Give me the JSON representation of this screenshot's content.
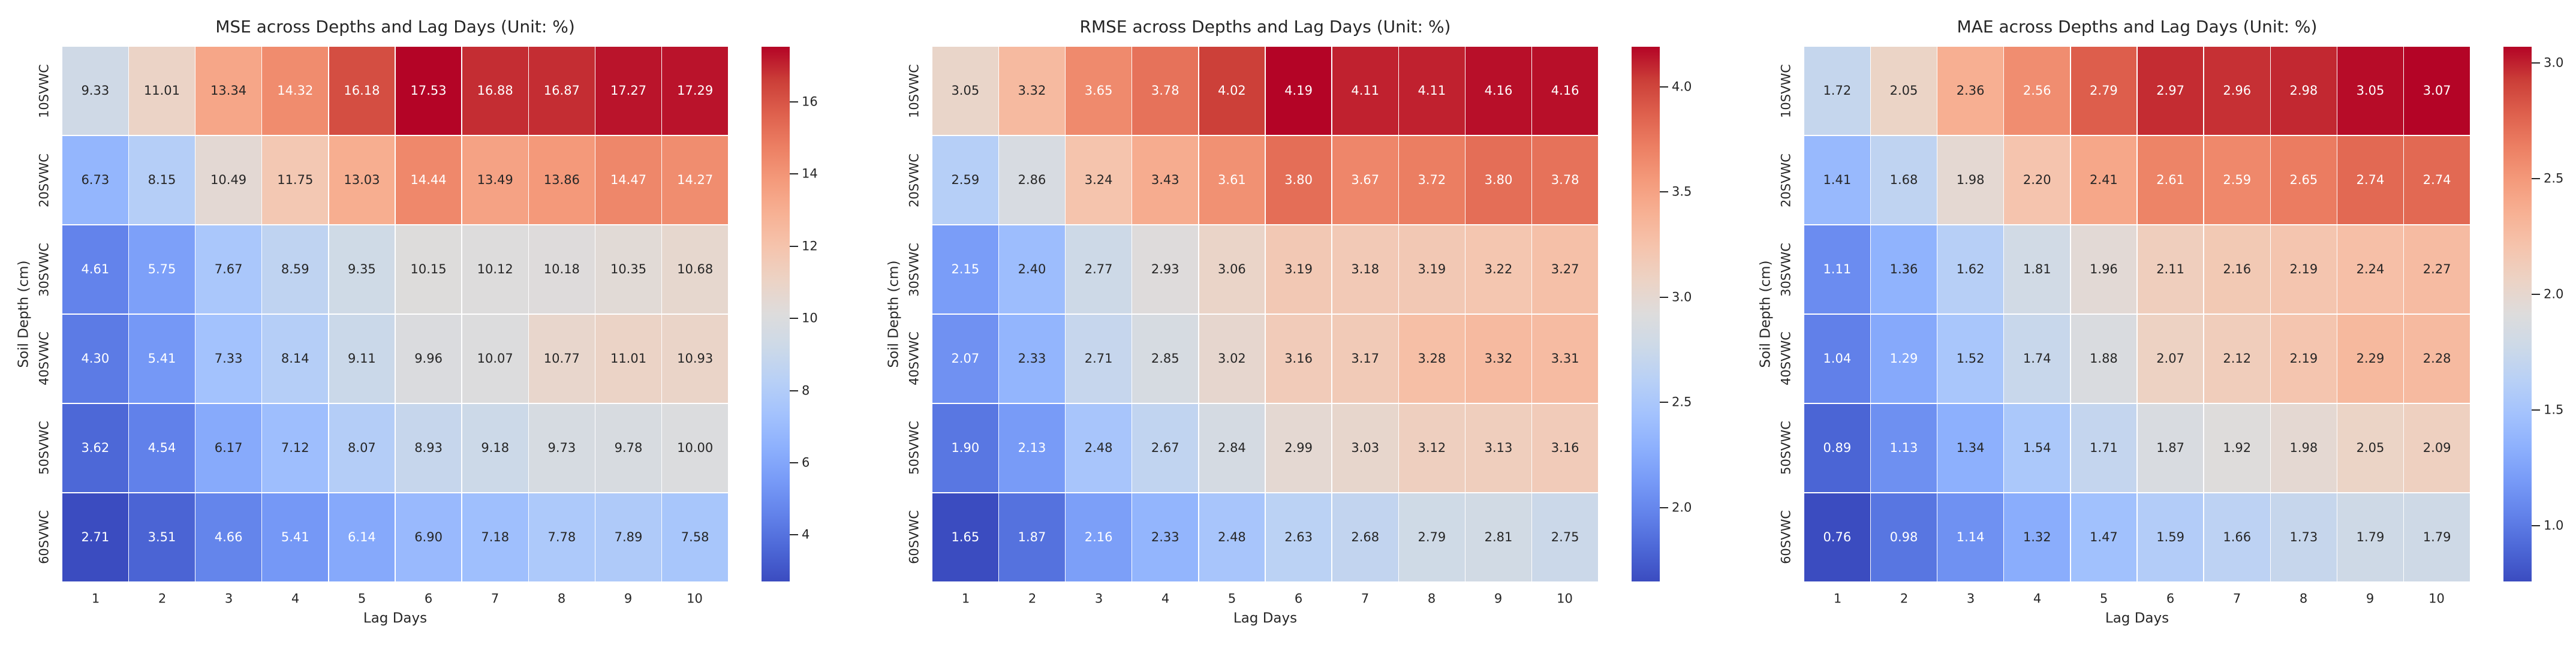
{
  "figure": {
    "background": "#ffffff",
    "text_color": "#262626",
    "colormap": "coolwarm",
    "colormap_stops": [
      [
        0.0,
        59,
        76,
        192
      ],
      [
        0.0625,
        77,
        104,
        215
      ],
      [
        0.125,
        98,
        130,
        234
      ],
      [
        0.1875,
        119,
        154,
        247
      ],
      [
        0.25,
        141,
        176,
        253
      ],
      [
        0.3125,
        163,
        194,
        253
      ],
      [
        0.375,
        184,
        208,
        246
      ],
      [
        0.4375,
        204,
        217,
        232
      ],
      [
        0.5,
        221,
        220,
        220
      ],
      [
        0.5625,
        236,
        211,
        197
      ],
      [
        0.625,
        245,
        196,
        173
      ],
      [
        0.6875,
        247,
        177,
        148
      ],
      [
        0.75,
        244,
        154,
        123
      ],
      [
        0.8125,
        236,
        127,
        99
      ],
      [
        0.875,
        222,
        96,
        77
      ],
      [
        0.9375,
        203,
        62,
        56
      ],
      [
        1.0,
        180,
        4,
        38
      ]
    ],
    "annotation_dark_text": "#262626",
    "annotation_light_text": "#ffffff"
  },
  "chart_data": [
    {
      "type": "heatmap",
      "title": "MSE across Depths and Lag Days (Unit: %)",
      "xlabel": "Lag Days",
      "ylabel": "Soil Depth (cm)",
      "x_ticks": [
        "1",
        "2",
        "3",
        "4",
        "5",
        "6",
        "7",
        "8",
        "9",
        "10"
      ],
      "y_ticks": [
        "10SVWC",
        "20SVWC",
        "30SVWC",
        "40SVWC",
        "50SVWC",
        "60SVWC"
      ],
      "values": [
        [
          9.33,
          11.01,
          13.34,
          14.32,
          16.18,
          17.53,
          16.88,
          16.87,
          17.27,
          17.29
        ],
        [
          6.73,
          8.15,
          10.49,
          11.75,
          13.03,
          14.44,
          13.49,
          13.86,
          14.47,
          14.27
        ],
        [
          4.61,
          5.75,
          7.67,
          8.59,
          9.35,
          10.15,
          10.12,
          10.18,
          10.35,
          10.68
        ],
        [
          4.3,
          5.41,
          7.33,
          8.14,
          9.11,
          9.96,
          10.07,
          10.77,
          11.01,
          10.93
        ],
        [
          3.62,
          4.54,
          6.17,
          7.12,
          8.07,
          8.93,
          9.18,
          9.73,
          9.78,
          10.0
        ],
        [
          2.71,
          3.51,
          4.66,
          5.41,
          6.14,
          6.9,
          7.18,
          7.78,
          7.89,
          7.58
        ]
      ],
      "vmin": 2.71,
      "vmax": 17.53,
      "annotation_decimals": 2,
      "grid": false,
      "colorbar": {
        "position": "right",
        "tick_values": [
          4,
          6,
          8,
          10,
          12,
          14,
          16
        ],
        "tick_labels": [
          "4",
          "6",
          "8",
          "10",
          "12",
          "14",
          "16"
        ]
      }
    },
    {
      "type": "heatmap",
      "title": "RMSE across Depths and Lag Days (Unit: %)",
      "xlabel": "Lag Days",
      "ylabel": "Soil Depth (cm)",
      "x_ticks": [
        "1",
        "2",
        "3",
        "4",
        "5",
        "6",
        "7",
        "8",
        "9",
        "10"
      ],
      "y_ticks": [
        "10SVWC",
        "20SVWC",
        "30SVWC",
        "40SVWC",
        "50SVWC",
        "60SVWC"
      ],
      "values": [
        [
          3.05,
          3.32,
          3.65,
          3.78,
          4.02,
          4.19,
          4.11,
          4.11,
          4.16,
          4.16
        ],
        [
          2.59,
          2.86,
          3.24,
          3.43,
          3.61,
          3.8,
          3.67,
          3.72,
          3.8,
          3.78
        ],
        [
          2.15,
          2.4,
          2.77,
          2.93,
          3.06,
          3.19,
          3.18,
          3.19,
          3.22,
          3.27
        ],
        [
          2.07,
          2.33,
          2.71,
          2.85,
          3.02,
          3.16,
          3.17,
          3.28,
          3.32,
          3.31
        ],
        [
          1.9,
          2.13,
          2.48,
          2.67,
          2.84,
          2.99,
          3.03,
          3.12,
          3.13,
          3.16
        ],
        [
          1.65,
          1.87,
          2.16,
          2.33,
          2.48,
          2.63,
          2.68,
          2.79,
          2.81,
          2.75
        ]
      ],
      "vmin": 1.65,
      "vmax": 4.19,
      "annotation_decimals": 2,
      "grid": false,
      "colorbar": {
        "position": "right",
        "tick_values": [
          2.0,
          2.5,
          3.0,
          3.5,
          4.0
        ],
        "tick_labels": [
          "2.0",
          "2.5",
          "3.0",
          "3.5",
          "4.0"
        ]
      }
    },
    {
      "type": "heatmap",
      "title": "MAE across Depths and Lag Days (Unit: %)",
      "xlabel": "Lag Days",
      "ylabel": "Soil Depth (cm)",
      "x_ticks": [
        "1",
        "2",
        "3",
        "4",
        "5",
        "6",
        "7",
        "8",
        "9",
        "10"
      ],
      "y_ticks": [
        "10SVWC",
        "20SVWC",
        "30SVWC",
        "40SVWC",
        "50SVWC",
        "60SVWC"
      ],
      "values": [
        [
          1.72,
          2.05,
          2.36,
          2.56,
          2.79,
          2.97,
          2.96,
          2.98,
          3.05,
          3.07
        ],
        [
          1.41,
          1.68,
          1.98,
          2.2,
          2.41,
          2.61,
          2.59,
          2.65,
          2.74,
          2.74
        ],
        [
          1.11,
          1.36,
          1.62,
          1.81,
          1.96,
          2.11,
          2.16,
          2.19,
          2.24,
          2.27
        ],
        [
          1.04,
          1.29,
          1.52,
          1.74,
          1.88,
          2.07,
          2.12,
          2.19,
          2.29,
          2.28
        ],
        [
          0.89,
          1.13,
          1.34,
          1.54,
          1.71,
          1.87,
          1.92,
          1.98,
          2.05,
          2.09
        ],
        [
          0.76,
          0.98,
          1.14,
          1.32,
          1.47,
          1.59,
          1.66,
          1.73,
          1.79,
          1.79
        ]
      ],
      "vmin": 0.76,
      "vmax": 3.07,
      "annotation_decimals": 2,
      "grid": false,
      "colorbar": {
        "position": "right",
        "tick_values": [
          1.0,
          1.5,
          2.0,
          2.5,
          3.0
        ],
        "tick_labels": [
          "1.0",
          "1.5",
          "2.0",
          "2.5",
          "3.0"
        ]
      }
    }
  ]
}
